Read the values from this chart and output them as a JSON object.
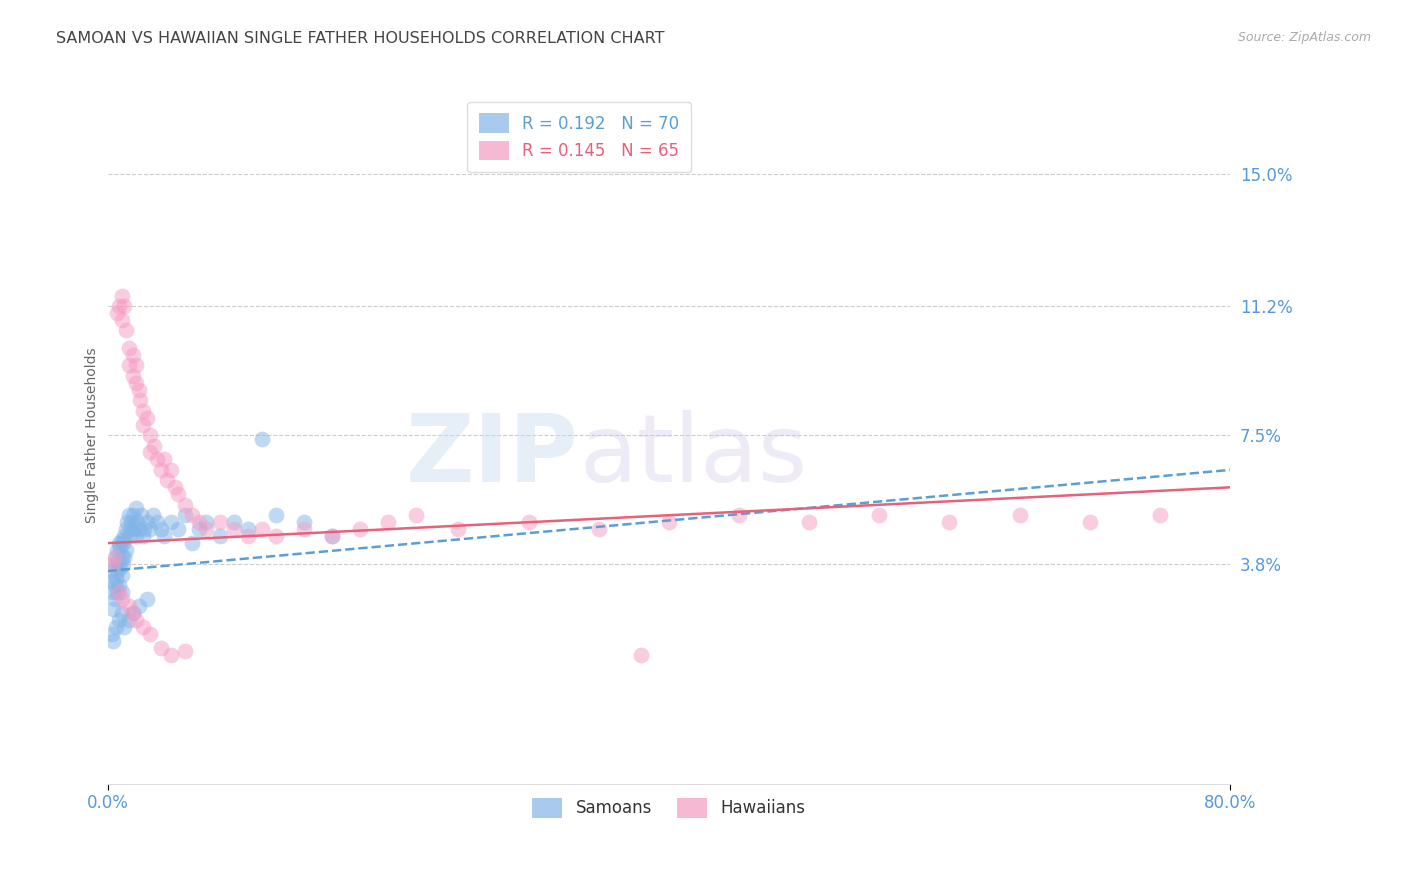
{
  "title": "SAMOAN VS HAWAIIAN SINGLE FATHER HOUSEHOLDS CORRELATION CHART",
  "source": "Source: ZipAtlas.com",
  "ylabel": "Single Father Households",
  "ytick_labels": [
    "15.0%",
    "11.2%",
    "7.5%",
    "3.8%"
  ],
  "ytick_values": [
    0.15,
    0.112,
    0.075,
    0.038
  ],
  "xlim": [
    0.0,
    0.8
  ],
  "ylim": [
    -0.025,
    0.175
  ],
  "watermark_zip": "ZIP",
  "watermark_atlas": "atlas",
  "samoan_color": "#82b4e8",
  "hawaiian_color": "#f49ac2",
  "samoan_line_color": "#5a9fd4",
  "hawaiian_line_color": "#e8607a",
  "background_color": "#ffffff",
  "grid_color": "#cccccc",
  "title_color": "#444444",
  "axis_label_color": "#666666",
  "ytick_color": "#5599dd",
  "xtick_color": "#5599dd",
  "samoans_x": [
    0.002,
    0.003,
    0.004,
    0.004,
    0.005,
    0.005,
    0.005,
    0.006,
    0.006,
    0.007,
    0.007,
    0.007,
    0.008,
    0.008,
    0.008,
    0.009,
    0.009,
    0.01,
    0.01,
    0.01,
    0.01,
    0.011,
    0.011,
    0.012,
    0.012,
    0.013,
    0.013,
    0.014,
    0.015,
    0.015,
    0.016,
    0.017,
    0.018,
    0.019,
    0.02,
    0.02,
    0.021,
    0.022,
    0.024,
    0.025,
    0.026,
    0.028,
    0.03,
    0.032,
    0.035,
    0.038,
    0.04,
    0.045,
    0.05,
    0.055,
    0.06,
    0.065,
    0.07,
    0.08,
    0.09,
    0.1,
    0.11,
    0.12,
    0.14,
    0.16,
    0.003,
    0.004,
    0.006,
    0.008,
    0.01,
    0.012,
    0.015,
    0.018,
    0.022,
    0.028
  ],
  "samoans_y": [
    0.036,
    0.033,
    0.03,
    0.025,
    0.038,
    0.032,
    0.028,
    0.04,
    0.034,
    0.042,
    0.036,
    0.03,
    0.044,
    0.038,
    0.032,
    0.043,
    0.037,
    0.045,
    0.04,
    0.035,
    0.03,
    0.044,
    0.038,
    0.046,
    0.04,
    0.048,
    0.042,
    0.05,
    0.052,
    0.046,
    0.048,
    0.05,
    0.052,
    0.048,
    0.054,
    0.046,
    0.05,
    0.048,
    0.052,
    0.046,
    0.048,
    0.05,
    0.048,
    0.052,
    0.05,
    0.048,
    0.046,
    0.05,
    0.048,
    0.052,
    0.044,
    0.048,
    0.05,
    0.046,
    0.05,
    0.048,
    0.074,
    0.052,
    0.05,
    0.046,
    0.018,
    0.016,
    0.02,
    0.022,
    0.024,
    0.02,
    0.022,
    0.024,
    0.026,
    0.028
  ],
  "hawaiians_x": [
    0.003,
    0.005,
    0.007,
    0.008,
    0.01,
    0.01,
    0.012,
    0.013,
    0.015,
    0.015,
    0.018,
    0.018,
    0.02,
    0.02,
    0.022,
    0.023,
    0.025,
    0.025,
    0.028,
    0.03,
    0.03,
    0.033,
    0.035,
    0.038,
    0.04,
    0.042,
    0.045,
    0.048,
    0.05,
    0.055,
    0.06,
    0.065,
    0.07,
    0.08,
    0.09,
    0.1,
    0.11,
    0.12,
    0.14,
    0.16,
    0.18,
    0.2,
    0.22,
    0.25,
    0.3,
    0.35,
    0.4,
    0.45,
    0.5,
    0.55,
    0.6,
    0.65,
    0.7,
    0.75,
    0.008,
    0.01,
    0.015,
    0.018,
    0.02,
    0.025,
    0.03,
    0.038,
    0.045,
    0.055,
    0.38
  ],
  "hawaiians_y": [
    0.038,
    0.04,
    0.11,
    0.112,
    0.115,
    0.108,
    0.112,
    0.105,
    0.1,
    0.095,
    0.098,
    0.092,
    0.09,
    0.095,
    0.088,
    0.085,
    0.082,
    0.078,
    0.08,
    0.075,
    0.07,
    0.072,
    0.068,
    0.065,
    0.068,
    0.062,
    0.065,
    0.06,
    0.058,
    0.055,
    0.052,
    0.05,
    0.048,
    0.05,
    0.048,
    0.046,
    0.048,
    0.046,
    0.048,
    0.046,
    0.048,
    0.05,
    0.052,
    0.048,
    0.05,
    0.048,
    0.05,
    0.052,
    0.05,
    0.052,
    0.05,
    0.052,
    0.05,
    0.052,
    0.03,
    0.028,
    0.026,
    0.024,
    0.022,
    0.02,
    0.018,
    0.014,
    0.012,
    0.013,
    0.012
  ],
  "samoan_line": {
    "x0": 0.0,
    "y0": 0.036,
    "x1": 0.8,
    "y1": 0.065
  },
  "hawaiian_line": {
    "x0": 0.0,
    "y0": 0.044,
    "x1": 0.8,
    "y1": 0.06
  }
}
